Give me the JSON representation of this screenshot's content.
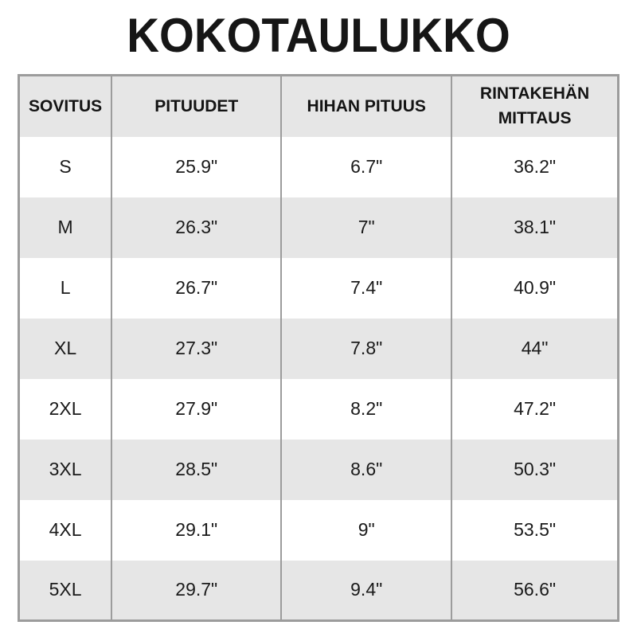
{
  "page": {
    "title": "KOKOTAULUKKO"
  },
  "table": {
    "headers": [
      "SOVITUS",
      "PITUUDET",
      "HIHAN PITUUS",
      "RINTAKEHÄN MITTAUS"
    ],
    "rows": [
      {
        "size": "S",
        "length": "25.9\"",
        "sleeve": "6.7\"",
        "chest": "36.2\""
      },
      {
        "size": "M",
        "length": "26.3\"",
        "sleeve": "7\"",
        "chest": "38.1\""
      },
      {
        "size": "L",
        "length": "26.7\"",
        "sleeve": "7.4\"",
        "chest": "40.9\""
      },
      {
        "size": "XL",
        "length": "27.3\"",
        "sleeve": "7.8\"",
        "chest": "44\""
      },
      {
        "size": "2XL",
        "length": "27.9\"",
        "sleeve": "8.2\"",
        "chest": "47.2\""
      },
      {
        "size": "3XL",
        "length": "28.5\"",
        "sleeve": "8.6\"",
        "chest": "50.3\""
      },
      {
        "size": "4XL",
        "length": "29.1\"",
        "sleeve": "9\"",
        "chest": "53.5\""
      },
      {
        "size": "5XL",
        "length": "29.7\"",
        "sleeve": "9.4\"",
        "chest": "56.6\""
      }
    ]
  },
  "colors": {
    "background": "#ffffff",
    "header_bg": "#e6e6e6",
    "row_alt_bg": "#e6e6e6",
    "border": "#9c9c9c",
    "text": "#111111"
  },
  "chart_data": {
    "type": "table",
    "title": "KOKOTAULUKKO",
    "columns": [
      "SOVITUS",
      "PITUUDET",
      "HIHAN PITUUS",
      "RINTAKEHÄN MITTAUS"
    ],
    "rows": [
      [
        "S",
        "25.9\"",
        "6.7\"",
        "36.2\""
      ],
      [
        "M",
        "26.3\"",
        "7\"",
        "38.1\""
      ],
      [
        "L",
        "26.7\"",
        "7.4\"",
        "40.9\""
      ],
      [
        "XL",
        "27.3\"",
        "7.8\"",
        "44\""
      ],
      [
        "2XL",
        "27.9\"",
        "8.2\"",
        "47.2\""
      ],
      [
        "3XL",
        "28.5\"",
        "8.6\"",
        "50.3\""
      ],
      [
        "4XL",
        "29.1\"",
        "9\"",
        "53.5\""
      ],
      [
        "5XL",
        "29.7\"",
        "9.4\"",
        "56.6\""
      ]
    ],
    "layout": {
      "header_background": "#e6e6e6",
      "alternating_row_background": "#e6e6e6",
      "grid": "vertical-separators-and-outer-border-only",
      "units": "inches"
    }
  }
}
